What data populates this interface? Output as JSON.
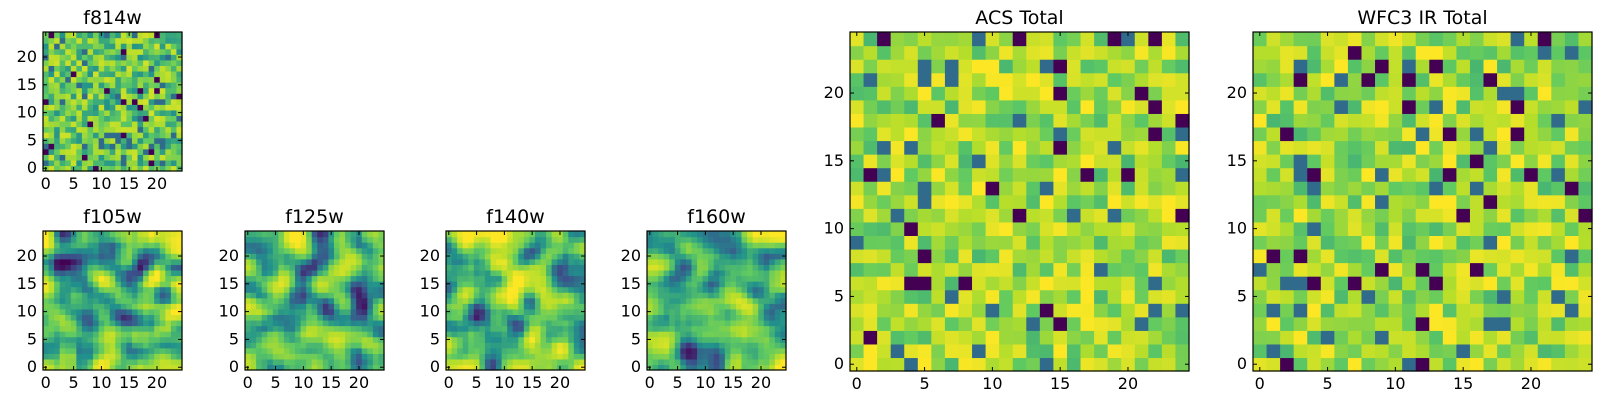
{
  "figure": {
    "colors": [
      "#440154",
      "#3b528b",
      "#21918c",
      "#5ec962",
      "#b5de2b",
      "#fde725"
    ],
    "colormap": "viridis",
    "background": "#ffffff"
  },
  "chart_data": [
    {
      "type": "heatmap",
      "title": "f814w",
      "shape": [
        25,
        25
      ],
      "xticks": [
        0,
        5,
        10,
        15,
        20
      ],
      "yticks": [
        0,
        5,
        10,
        15,
        20
      ],
      "xlim": [
        -0.5,
        24.5
      ],
      "ylim": [
        -0.5,
        24.5
      ],
      "texture": "noisy",
      "level": 0.55
    },
    {
      "type": "heatmap",
      "title": "f105w",
      "shape": [
        25,
        25
      ],
      "xticks": [
        0,
        5,
        10,
        15,
        20
      ],
      "yticks": [
        0,
        5,
        10,
        15,
        20
      ],
      "xlim": [
        -0.5,
        24.5
      ],
      "ylim": [
        -0.5,
        24.5
      ],
      "texture": "smooth",
      "level": 0.55
    },
    {
      "type": "heatmap",
      "title": "f125w",
      "shape": [
        25,
        25
      ],
      "xticks": [
        0,
        5,
        10,
        15,
        20
      ],
      "yticks": [
        0,
        5,
        10,
        15,
        20
      ],
      "xlim": [
        -0.5,
        24.5
      ],
      "ylim": [
        -0.5,
        24.5
      ],
      "texture": "smooth",
      "level": 0.6
    },
    {
      "type": "heatmap",
      "title": "f140w",
      "shape": [
        25,
        25
      ],
      "xticks": [
        0,
        5,
        10,
        15,
        20
      ],
      "yticks": [
        0,
        5,
        10,
        15,
        20
      ],
      "xlim": [
        -0.5,
        24.5
      ],
      "ylim": [
        -0.5,
        24.5
      ],
      "texture": "smooth",
      "level": 0.62
    },
    {
      "type": "heatmap",
      "title": "f160w",
      "shape": [
        25,
        25
      ],
      "xticks": [
        0,
        5,
        10,
        15,
        20
      ],
      "yticks": [
        0,
        5,
        10,
        15,
        20
      ],
      "xlim": [
        -0.5,
        24.5
      ],
      "ylim": [
        -0.5,
        24.5
      ],
      "texture": "smooth",
      "level": 0.6
    },
    {
      "type": "heatmap",
      "title": "ACS Total",
      "shape": [
        25,
        25
      ],
      "xticks": [
        0,
        5,
        10,
        15,
        20
      ],
      "yticks": [
        0,
        5,
        10,
        15,
        20
      ],
      "xlim": [
        -0.5,
        24.5
      ],
      "ylim": [
        -0.5,
        24.5
      ],
      "texture": "noisy",
      "level": 0.68
    },
    {
      "type": "heatmap",
      "title": "WFC3 IR Total",
      "shape": [
        25,
        25
      ],
      "xticks": [
        0,
        5,
        10,
        15,
        20
      ],
      "yticks": [
        0,
        5,
        10,
        15,
        20
      ],
      "xlim": [
        -0.5,
        24.5
      ],
      "ylim": [
        -0.5,
        24.5
      ],
      "texture": "noisy",
      "level": 0.68
    }
  ]
}
